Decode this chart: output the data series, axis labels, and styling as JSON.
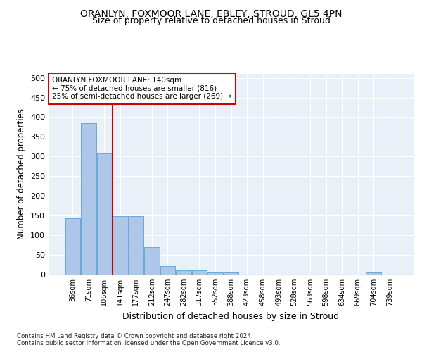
{
  "title1": "ORANLYN, FOXMOOR LANE, EBLEY, STROUD, GL5 4PN",
  "title2": "Size of property relative to detached houses in Stroud",
  "xlabel": "Distribution of detached houses by size in Stroud",
  "ylabel": "Number of detached properties",
  "footnote1": "Contains HM Land Registry data © Crown copyright and database right 2024.",
  "footnote2": "Contains public sector information licensed under the Open Government Licence v3.0.",
  "bin_labels": [
    "36sqm",
    "71sqm",
    "106sqm",
    "141sqm",
    "177sqm",
    "212sqm",
    "247sqm",
    "282sqm",
    "317sqm",
    "352sqm",
    "388sqm",
    "423sqm",
    "458sqm",
    "493sqm",
    "528sqm",
    "563sqm",
    "598sqm",
    "634sqm",
    "669sqm",
    "704sqm",
    "739sqm"
  ],
  "bar_values": [
    143,
    385,
    308,
    148,
    148,
    70,
    22,
    10,
    10,
    5,
    5,
    0,
    0,
    0,
    0,
    0,
    0,
    0,
    0,
    5,
    0
  ],
  "bar_color": "#aec6e8",
  "bar_edge_color": "#5a9fd4",
  "vline_pos": 2.5,
  "vline_color": "#cc0000",
  "annotation_text": "ORANLYN FOXMOOR LANE: 140sqm\n← 75% of detached houses are smaller (816)\n25% of semi-detached houses are larger (269) →",
  "annotation_box_color": "#ffffff",
  "annotation_border_color": "#cc0000",
  "ylim": [
    0,
    510
  ],
  "yticks": [
    0,
    50,
    100,
    150,
    200,
    250,
    300,
    350,
    400,
    450,
    500
  ],
  "bg_color": "#eaf0f8",
  "fig_bg_color": "#ffffff",
  "title_fontsize": 10,
  "subtitle_fontsize": 9
}
